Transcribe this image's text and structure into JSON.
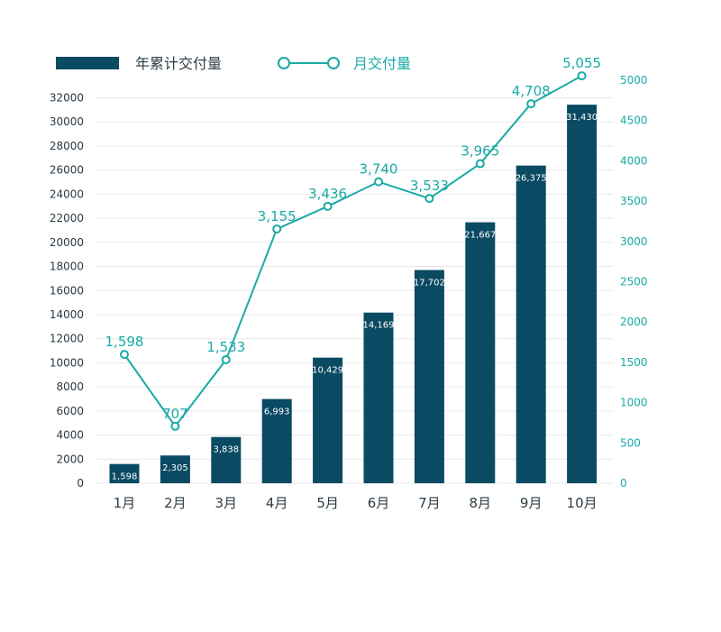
{
  "colors": {
    "bar": "#0b4a63",
    "line": "#19aaa6",
    "grid": "#e6e9ec",
    "left_tick": "#2b3a44",
    "right_tick": "#19aaa6",
    "category": "#2f3d46"
  },
  "legend": {
    "bar_label": "年累计交付量",
    "line_label": "月交付量"
  },
  "chart_data": {
    "type": "bar",
    "categories": [
      "1月",
      "2月",
      "3月",
      "4月",
      "5月",
      "6月",
      "7月",
      "8月",
      "9月",
      "10月"
    ],
    "series": [
      {
        "name": "年累计交付量",
        "type": "bar",
        "axis": "left",
        "values": [
          1598,
          2305,
          3838,
          6993,
          10429,
          14169,
          17702,
          21667,
          26375,
          31430
        ],
        "value_labels": [
          "1,598",
          "2,305",
          "3,838",
          "6,993",
          "10,429",
          "14,169",
          "17,702",
          "21,667",
          "26,375",
          "31,430"
        ]
      },
      {
        "name": "月交付量",
        "type": "line",
        "axis": "right",
        "values": [
          1598,
          707,
          1533,
          3155,
          3436,
          3740,
          3533,
          3965,
          4708,
          5055
        ],
        "value_labels": [
          "1,598",
          "707",
          "1,533",
          "3,155",
          "3,436",
          "3,740",
          "3,533",
          "3,965",
          "4,708",
          "5,055"
        ]
      }
    ],
    "y_left": {
      "range": [
        0,
        32000
      ],
      "ticks": [
        0,
        2000,
        4000,
        6000,
        8000,
        10000,
        12000,
        14000,
        16000,
        18000,
        20000,
        22000,
        24000,
        26000,
        28000,
        30000,
        32000
      ]
    },
    "y_right": {
      "range": [
        0,
        5000
      ],
      "ticks": [
        0,
        500,
        1000,
        1500,
        2000,
        2500,
        3000,
        3500,
        4000,
        4500,
        5000
      ]
    },
    "grid": true,
    "legend_position": "top-left"
  }
}
